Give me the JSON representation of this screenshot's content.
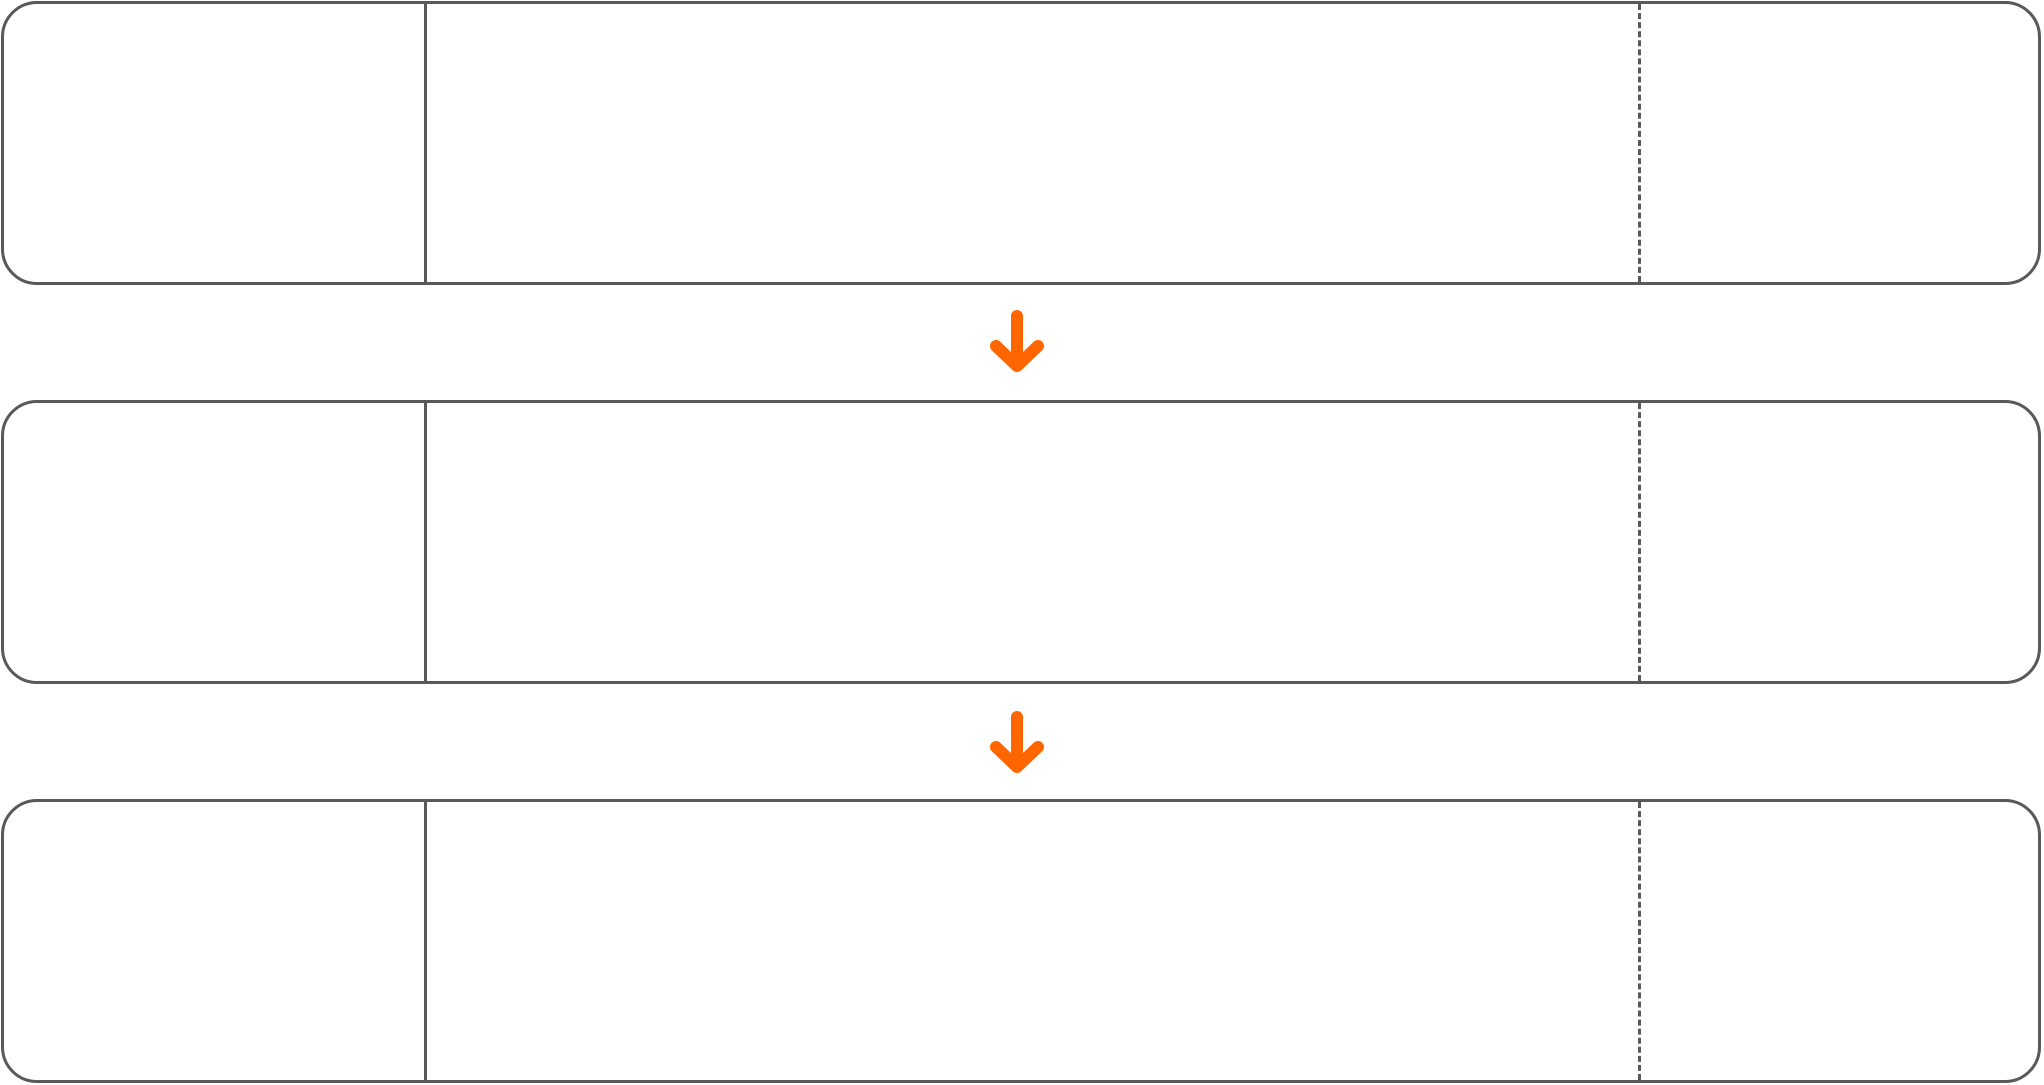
{
  "diagram": {
    "stroke_color": "#595959",
    "arrow_color": "#FF6600",
    "arrow_icon": "arrow-down-icon",
    "steps": [
      {
        "left_text": "",
        "middle_text": "",
        "right_text": ""
      },
      {
        "left_text": "",
        "middle_text": "",
        "right_text": ""
      },
      {
        "left_text": "",
        "middle_text": "",
        "right_text": ""
      }
    ]
  }
}
